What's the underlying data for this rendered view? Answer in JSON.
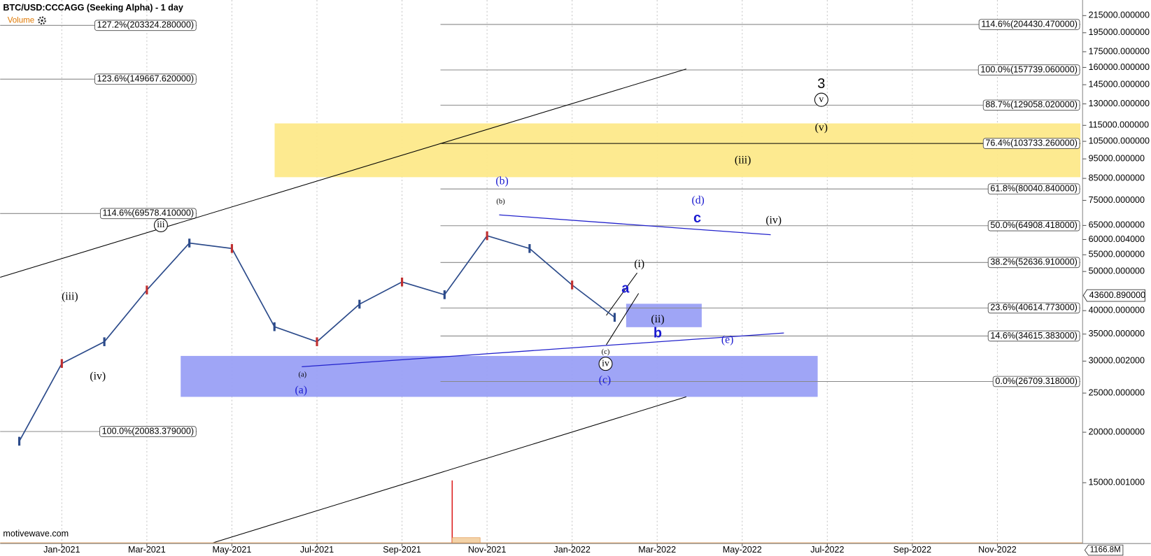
{
  "chart_data": {
    "type": "line",
    "title": "BTC/USD:CCCAGG (Seeking Alpha) - 1 day",
    "volume_label": "Volume",
    "watermark": "motivewave.com",
    "volume_axis_label": "1166.8M",
    "log_scale": true,
    "grid": true,
    "x": [
      "2020-12",
      "2021-01",
      "2021-02",
      "2021-03",
      "2021-04",
      "2021-05",
      "2021-06",
      "2021-07",
      "2021-08",
      "2021-09",
      "2021-10",
      "2021-11",
      "2021-12",
      "2022-01",
      "2022-02"
    ],
    "series": [
      {
        "name": "BTC/USD",
        "color": "#2b4a8a",
        "values": [
          19000,
          29600,
          33500,
          45000,
          58800,
          57000,
          36500,
          33500,
          41500,
          47100,
          43800,
          61300,
          57000,
          46300,
          38500
        ]
      }
    ],
    "last_price": {
      "value": 43600.89,
      "label": "43600.890000"
    },
    "xticks": [
      {
        "value": "2021-01",
        "label": "Jan-2021"
      },
      {
        "value": "2021-03",
        "label": "Mar-2021"
      },
      {
        "value": "2021-05",
        "label": "May-2021"
      },
      {
        "value": "2021-07",
        "label": "Jul-2021"
      },
      {
        "value": "2021-09",
        "label": "Sep-2021"
      },
      {
        "value": "2021-11",
        "label": "Nov-2021"
      },
      {
        "value": "2022-01",
        "label": "Jan-2022"
      },
      {
        "value": "2022-03",
        "label": "Mar-2022"
      },
      {
        "value": "2022-05",
        "label": "May-2022"
      },
      {
        "value": "2022-07",
        "label": "Jul-2022"
      },
      {
        "value": "2022-09",
        "label": "Sep-2022"
      },
      {
        "value": "2022-11",
        "label": "Nov-2022"
      }
    ],
    "ylim": [
      10650,
      235000
    ],
    "yticks": [
      {
        "value": 215000,
        "label": "215000.000000"
      },
      {
        "value": 195000,
        "label": "195000.000000"
      },
      {
        "value": 175000,
        "label": "175000.000000"
      },
      {
        "value": 160000,
        "label": "160000.000000"
      },
      {
        "value": 145000,
        "label": "145000.000000"
      },
      {
        "value": 130000,
        "label": "130000.000000"
      },
      {
        "value": 115000,
        "label": "115000.000000"
      },
      {
        "value": 105000,
        "label": "105000.000000"
      },
      {
        "value": 95000,
        "label": "95000.000000"
      },
      {
        "value": 85000,
        "label": "85000.000000"
      },
      {
        "value": 75000,
        "label": "75000.000000"
      },
      {
        "value": 65000,
        "label": "65000.000000"
      },
      {
        "value": 60000.004,
        "label": "60000.004000"
      },
      {
        "value": 55000,
        "label": "55000.000000"
      },
      {
        "value": 50000,
        "label": "50000.000000"
      },
      {
        "value": 40000,
        "label": "40000.000000"
      },
      {
        "value": 35000,
        "label": "35000.000000"
      },
      {
        "value": 30000.002,
        "label": "30000.002000"
      },
      {
        "value": 25000,
        "label": "25000.000000"
      },
      {
        "value": 20000,
        "label": "20000.000000"
      },
      {
        "value": 15000.001,
        "label": "15000.001000"
      }
    ],
    "fib_left": [
      {
        "value": 203324.28,
        "label": "127.2%(203324.280000)"
      },
      {
        "value": 149667.62,
        "label": "123.6%(149667.620000)"
      },
      {
        "value": 69578.41,
        "label": "114.6%(69578.410000)"
      },
      {
        "value": 20083.379,
        "label": "100.0%(20083.379000)"
      }
    ],
    "fib_right": [
      {
        "value": 204430.47,
        "label": "114.6%(204430.470000)"
      },
      {
        "value": 157739.06,
        "label": "100.0%(157739.060000)"
      },
      {
        "value": 129058.02,
        "label": "88.7%(129058.020000)"
      },
      {
        "value": 103733.26,
        "label": "76.4%(103733.260000)"
      },
      {
        "value": 80040.84,
        "label": "61.8%(80040.840000)"
      },
      {
        "value": 64908.418,
        "label": "50.0%(64908.418000)"
      },
      {
        "value": 52636.91,
        "label": "38.2%(52636.910000)"
      },
      {
        "value": 40614.773,
        "label": "23.6%(40614.773000)"
      },
      {
        "value": 34615.383,
        "label": "14.6%(34615.383000)"
      },
      {
        "value": 26709.318,
        "label": "0.0%(26709.318000)"
      }
    ],
    "zones": [
      {
        "low": 85600,
        "high": 116300,
        "color": "#fde98a"
      },
      {
        "low": 24470,
        "high": 30900,
        "color": "#9aa0f5"
      },
      {
        "low": 36400,
        "high": 41600,
        "color": "#9aa0f5"
      }
    ],
    "annotations": [
      "(iii)",
      "(iv)",
      "iii",
      "(a)",
      "(a)",
      "(b)",
      "(b)",
      "(c)",
      "iv",
      "(c)",
      "(d)",
      "c",
      "a",
      "(i)",
      "(ii)",
      "b",
      "(e)",
      "(iv)",
      "(iii)",
      "(v)",
      "v",
      "3"
    ]
  }
}
